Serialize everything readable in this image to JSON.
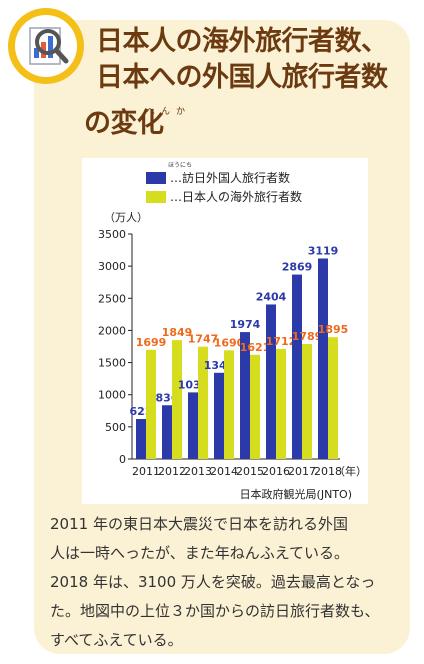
{
  "header": {
    "title_lines": [
      "日本人の海外旅行者数、",
      "日本への外国人旅行者数",
      "の変化"
    ],
    "title_ruby": "へんか"
  },
  "chart_data": {
    "type": "bar",
    "unit_label": "（万人）",
    "categories": [
      "2011",
      "2012",
      "2013",
      "2014",
      "2015",
      "2016",
      "2017",
      "2018"
    ],
    "x_unit": "（年）",
    "ylim": [
      0,
      3500
    ],
    "yticks": [
      0,
      500,
      1000,
      1500,
      2000,
      2500,
      3000,
      3500
    ],
    "grid": false,
    "legend_position": "top-left",
    "series": [
      {
        "name": "…訪日外国人旅行者数",
        "color": "#2b3aa8",
        "label_color": "#2b3aa8",
        "values": [
          622,
          836,
          1036,
          1341,
          1974,
          2404,
          2869,
          3119
        ]
      },
      {
        "name": "…日本人の海外旅行者数",
        "color": "#d6dc1e",
        "label_color": "#f06a1c",
        "values": [
          1699,
          1849,
          1747,
          1690,
          1621,
          1712,
          1789,
          1895
        ]
      }
    ],
    "legend_ruby": "ほうにち",
    "source": "日本政府観光局(JNTO)"
  },
  "body": {
    "lines": [
      "2011 年の東日本大震災で日本を訪れる外国",
      "人は一時へったが、また年ねんふえている。",
      "2018 年は、3100 万人を突破。過去最高となっ",
      "た。地図中の上位３か国からの訪日旅行者数も、",
      "すべてふえている。"
    ]
  },
  "colors": {
    "card": "#fbf1d4",
    "title": "#6b3a10",
    "accent": "#f4c018"
  }
}
